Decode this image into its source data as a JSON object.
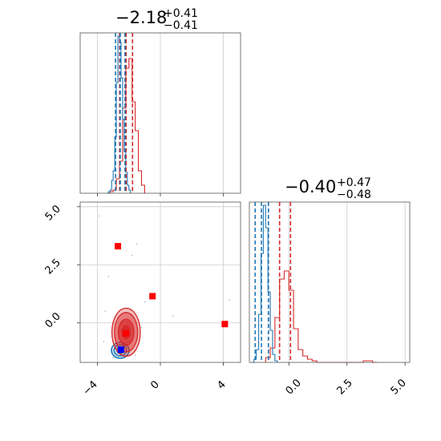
{
  "chart_data": {
    "type": "corner",
    "colors": {
      "primary": "#d62728",
      "secondary": "#1f77b4",
      "marker_primary": "#ff0000",
      "marker_secondary": "#0000ff",
      "grid": "#cccccc"
    },
    "parameters": [
      {
        "index": 0,
        "median_label": "−2.18",
        "upper_label": "+0.41",
        "lower_label": "−0.41",
        "range": [
          -5.1,
          5.1
        ]
      },
      {
        "index": 1,
        "median_label": "−0.40",
        "upper_label": "+0.47",
        "lower_label": "−0.48",
        "range": [
          -1.7,
          5.2
        ]
      }
    ],
    "x_ticks_param0": [
      {
        "value": -4,
        "label": "−4"
      },
      {
        "value": 0,
        "label": "0"
      },
      {
        "value": 4,
        "label": "4"
      }
    ],
    "y_ticks_param1": [
      {
        "value": 5.0,
        "label": "5.0"
      },
      {
        "value": 2.5,
        "label": "2.5"
      },
      {
        "value": 0.0,
        "label": "0.0"
      }
    ],
    "x_ticks_param1": [
      {
        "value": 0.0,
        "label": "0.0"
      },
      {
        "value": 2.5,
        "label": "2.5"
      },
      {
        "value": 5.0,
        "label": "5.0"
      }
    ],
    "hist0_red": {
      "bin_edges": [
        -3.4,
        -3.2,
        -3.0,
        -2.8,
        -2.6,
        -2.4,
        -2.2,
        -2.0,
        -1.8,
        -1.6,
        -1.4,
        -1.2,
        -1.0
      ],
      "heights": [
        0.0,
        0.01,
        0.02,
        0.09,
        0.2,
        0.53,
        0.78,
        0.84,
        0.57,
        0.39,
        0.14,
        0.05
      ]
    },
    "hist0_blue": {
      "bin_edges": [
        -3.4,
        -3.3,
        -3.2,
        -3.1,
        -3.0,
        -2.9,
        -2.8,
        -2.7,
        -2.6,
        -2.5,
        -2.4,
        -2.3,
        -2.2,
        -2.1,
        -2.0,
        -1.9
      ],
      "heights": [
        0.0,
        0.01,
        0.02,
        0.08,
        0.14,
        0.35,
        0.69,
        0.98,
        0.94,
        0.72,
        0.46,
        0.26,
        0.13,
        0.05,
        0.02
      ]
    },
    "hist0_red_quantiles": [
      -2.59,
      -2.18,
      -1.77
    ],
    "hist0_blue_quantiles": [
      -2.85,
      -2.55,
      -2.25
    ],
    "hist1_red": {
      "bin_edges": [
        -1.0,
        -0.8,
        -0.6,
        -0.4,
        -0.2,
        0.0,
        0.2,
        0.4,
        0.6,
        0.8,
        1.0,
        1.2,
        3.2,
        3.6,
        3.8
      ],
      "heights": [
        0.03,
        0.09,
        0.28,
        0.52,
        0.57,
        0.45,
        0.21,
        0.08,
        0.04,
        0.02,
        0.01,
        0.0,
        0.01,
        0.0
      ]
    },
    "hist1_blue": {
      "bin_edges": [
        -1.6,
        -1.5,
        -1.4,
        -1.3,
        -1.2,
        -1.1,
        -1.0,
        -0.9,
        -0.8,
        -0.7,
        -0.6,
        -0.5
      ],
      "heights": [
        0.0,
        0.02,
        0.08,
        0.3,
        0.68,
        0.98,
        0.84,
        0.44,
        0.2,
        0.05,
        0.01
      ]
    },
    "hist1_red_quantiles": [
      -0.88,
      -0.4,
      0.07
    ],
    "hist1_blue_quantiles": [
      -1.45,
      -1.18,
      -0.88
    ],
    "red_markers": [
      {
        "x": -2.7,
        "y": 3.3
      },
      {
        "x": -0.5,
        "y": 1.15
      },
      {
        "x": 4.1,
        "y": -0.05
      },
      {
        "x": -2.2,
        "y": -0.45
      }
    ],
    "blue_markers": [
      {
        "x": -2.5,
        "y": -1.15
      }
    ],
    "red_contour_center": [
      -2.18,
      -0.4
    ],
    "red_contour_sigma": [
      0.41,
      0.47
    ],
    "blue_contour_center": [
      -2.55,
      -1.18
    ],
    "blue_contour_sigma": [
      0.28,
      0.17
    ],
    "scatter_outliers": [
      {
        "x": -3.9,
        "y": 4.6
      },
      {
        "x": -1.8,
        "y": 2.9
      },
      {
        "x": -1.5,
        "y": 3.4
      },
      {
        "x": -3.3,
        "y": 2.0
      },
      {
        "x": -1.0,
        "y": 0.9
      },
      {
        "x": 4.4,
        "y": 1.0
      },
      {
        "x": -3.5,
        "y": 0.5
      },
      {
        "x": -1.2,
        "y": -0.2
      },
      {
        "x": 0.8,
        "y": 0.3
      },
      {
        "x": -3.0,
        "y": -1.5
      },
      {
        "x": -1.6,
        "y": -1.4
      },
      {
        "x": -3.6,
        "y": -0.8
      }
    ]
  }
}
